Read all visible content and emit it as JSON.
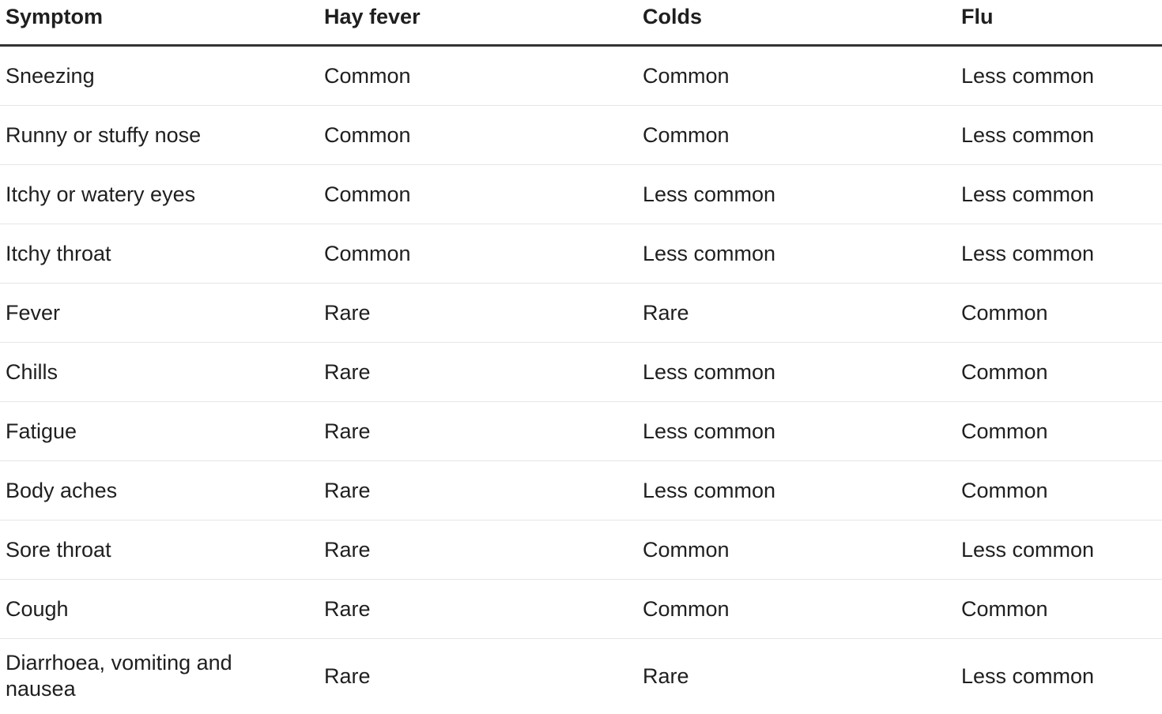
{
  "table": {
    "header": [
      "Symptom",
      "Hay fever",
      "Colds",
      "Flu"
    ],
    "rows": [
      [
        "Sneezing",
        "Common",
        "Common",
        "Less common"
      ],
      [
        "Runny or stuffy nose",
        "Common",
        "Common",
        "Less common"
      ],
      [
        "Itchy or watery eyes",
        "Common",
        "Less common",
        "Less common"
      ],
      [
        "Itchy throat",
        "Common",
        "Less common",
        "Less common"
      ],
      [
        "Fever",
        "Rare",
        "Rare",
        "Common"
      ],
      [
        "Chills",
        "Rare",
        "Less common",
        "Common"
      ],
      [
        "Fatigue",
        "Rare",
        "Less common",
        "Common"
      ],
      [
        "Body aches",
        "Rare",
        "Less common",
        "Common"
      ],
      [
        "Sore throat",
        "Rare",
        "Common",
        "Less common"
      ],
      [
        "Cough",
        "Rare",
        "Common",
        "Common"
      ],
      [
        "Diarrhoea, vomiting and nausea",
        "Rare",
        "Rare",
        "Less common"
      ]
    ]
  }
}
